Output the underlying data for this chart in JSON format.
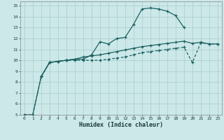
{
  "xlabel": "Humidex (Indice chaleur)",
  "bg_color": "#cce8e8",
  "grid_color": "#aacccc",
  "line_color": "#1a6060",
  "xlim": [
    -0.5,
    23.5
  ],
  "ylim": [
    5,
    15.4
  ],
  "xticks": [
    0,
    1,
    2,
    3,
    4,
    5,
    6,
    7,
    8,
    9,
    10,
    11,
    12,
    13,
    14,
    15,
    16,
    17,
    18,
    19,
    20,
    21,
    22,
    23
  ],
  "yticks": [
    5,
    6,
    7,
    8,
    9,
    10,
    11,
    12,
    13,
    14,
    15
  ],
  "line1_x": [
    0,
    1,
    2,
    3,
    4,
    5,
    6,
    7,
    8,
    9,
    10,
    11,
    12,
    13,
    14,
    15,
    16,
    17,
    18,
    19
  ],
  "line1_y": [
    5.0,
    5.0,
    8.5,
    9.8,
    9.9,
    10.0,
    10.1,
    10.1,
    10.5,
    11.7,
    11.5,
    12.0,
    12.1,
    13.3,
    14.7,
    14.8,
    14.7,
    14.5,
    14.1,
    13.0
  ],
  "line2_x": [
    2,
    3,
    4,
    5,
    6,
    7,
    8,
    9,
    10,
    11,
    12,
    13,
    14,
    15,
    16,
    17,
    18,
    19,
    20,
    21,
    22,
    23
  ],
  "line2_y": [
    8.5,
    9.8,
    9.9,
    10.0,
    10.1,
    10.3,
    10.4,
    10.5,
    10.65,
    10.8,
    10.95,
    11.1,
    11.25,
    11.35,
    11.45,
    11.55,
    11.65,
    11.75,
    11.55,
    11.65,
    11.5,
    11.5
  ],
  "line3_x": [
    0,
    1,
    2,
    3,
    4,
    5,
    6,
    7,
    8,
    9,
    10,
    11,
    12,
    13,
    14,
    15,
    16,
    17,
    18,
    19,
    20,
    21,
    22,
    23
  ],
  "line3_y": [
    5.0,
    5.0,
    8.5,
    9.8,
    9.9,
    10.0,
    10.0,
    10.0,
    10.0,
    10.0,
    10.1,
    10.2,
    10.3,
    10.5,
    10.7,
    10.8,
    10.9,
    11.0,
    11.1,
    11.2,
    9.8,
    11.6,
    11.5,
    11.5
  ],
  "line1_style": "-",
  "line2_style": "-",
  "line3_style": "--"
}
